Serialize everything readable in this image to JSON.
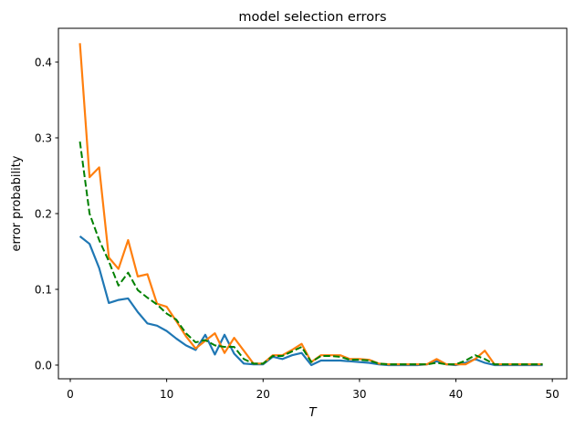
{
  "figure": {
    "background_color": "#ffffff",
    "spine_color": "#000000"
  },
  "chart_data": {
    "type": "line",
    "title": "model selection errors",
    "xlabel": "T",
    "ylabel": "error probability",
    "xticks": [
      0,
      10,
      20,
      30,
      40,
      50
    ],
    "yticks": [
      0.0,
      0.1,
      0.2,
      0.3,
      0.4
    ],
    "xlim": [
      -1.23,
      51.5
    ],
    "ylim": [
      -0.0181,
      0.4446
    ],
    "grid": false,
    "legend": "none",
    "x": [
      1,
      2,
      3,
      4,
      5,
      6,
      7,
      8,
      9,
      10,
      11,
      12,
      13,
      14,
      15,
      16,
      17,
      18,
      19,
      20,
      21,
      22,
      23,
      24,
      25,
      26,
      27,
      28,
      29,
      30,
      31,
      32,
      33,
      34,
      35,
      36,
      37,
      38,
      39,
      40,
      41,
      42,
      43,
      44,
      45,
      46,
      47,
      48,
      49
    ],
    "series": [
      {
        "name": "blue-solid",
        "color": "#1f77b4",
        "line_style": "solid",
        "values": [
          0.17,
          0.16,
          0.128,
          0.082,
          0.086,
          0.088,
          0.07,
          0.055,
          0.052,
          0.045,
          0.035,
          0.026,
          0.02,
          0.04,
          0.014,
          0.04,
          0.015,
          0.002,
          0.001,
          0.001,
          0.011,
          0.008,
          0.013,
          0.016,
          0.0,
          0.006,
          0.006,
          0.006,
          0.005,
          0.004,
          0.003,
          0.001,
          0.0,
          0.0,
          0.0,
          0.0,
          0.001,
          0.005,
          0.001,
          0.0,
          0.003,
          0.008,
          0.003,
          0.0,
          0.0,
          0.0,
          0.0,
          0.0,
          0.0
        ]
      },
      {
        "name": "orange-solid",
        "color": "#ff7f0e",
        "line_style": "solid",
        "values": [
          0.425,
          0.248,
          0.261,
          0.142,
          0.127,
          0.165,
          0.117,
          0.12,
          0.081,
          0.077,
          0.058,
          0.038,
          0.022,
          0.032,
          0.042,
          0.016,
          0.036,
          0.019,
          0.002,
          0.002,
          0.013,
          0.013,
          0.02,
          0.028,
          0.004,
          0.013,
          0.013,
          0.013,
          0.008,
          0.008,
          0.007,
          0.002,
          0.001,
          0.001,
          0.001,
          0.001,
          0.001,
          0.008,
          0.001,
          0.001,
          0.001,
          0.008,
          0.019,
          0.001,
          0.001,
          0.001,
          0.001,
          0.001,
          0.001
        ]
      },
      {
        "name": "green-dashed",
        "color": "#008000",
        "line_style": "dashed",
        "values": [
          0.295,
          0.2,
          0.165,
          0.137,
          0.105,
          0.122,
          0.099,
          0.089,
          0.08,
          0.068,
          0.06,
          0.042,
          0.03,
          0.033,
          0.026,
          0.024,
          0.024,
          0.008,
          0.002,
          0.002,
          0.012,
          0.012,
          0.018,
          0.024,
          0.004,
          0.012,
          0.012,
          0.011,
          0.007,
          0.007,
          0.006,
          0.002,
          0.001,
          0.001,
          0.001,
          0.001,
          0.001,
          0.003,
          0.001,
          0.001,
          0.006,
          0.013,
          0.008,
          0.001,
          0.001,
          0.001,
          0.001,
          0.001,
          0.001
        ]
      }
    ]
  }
}
